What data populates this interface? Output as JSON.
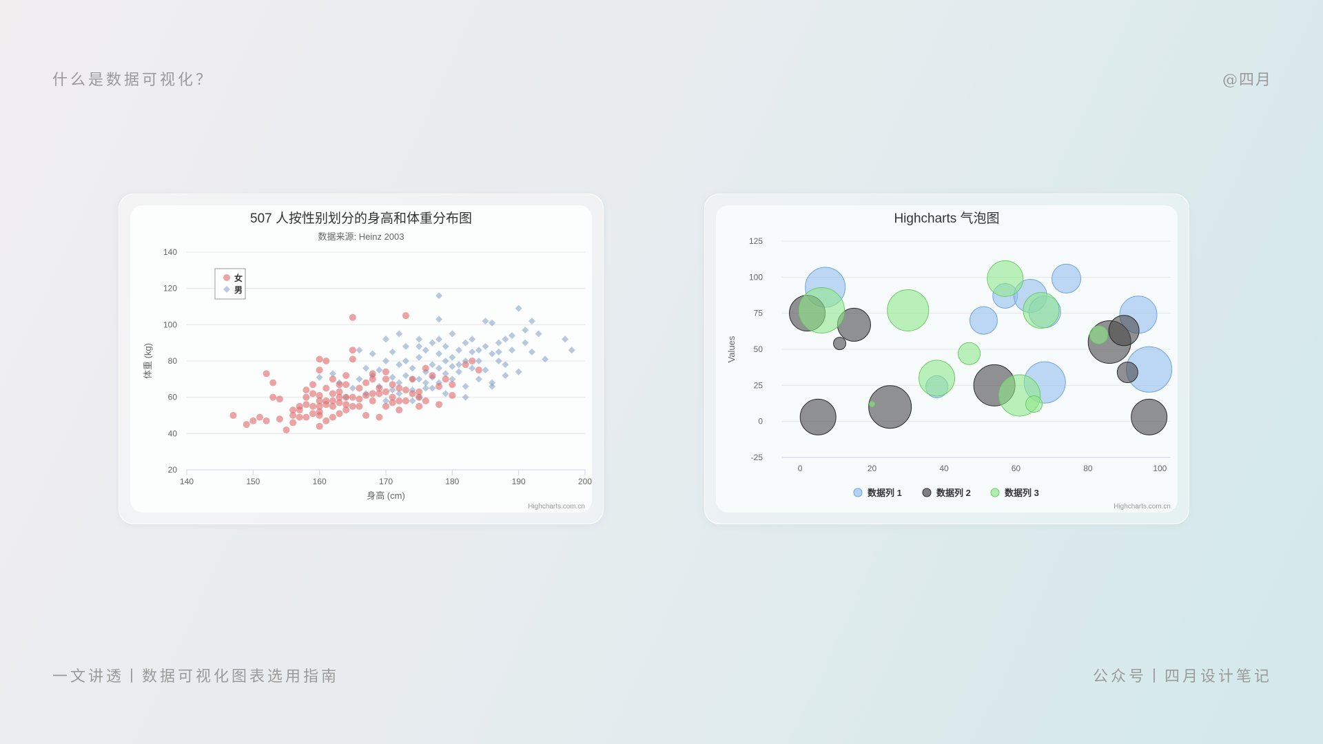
{
  "page": {
    "top_left": "什么是数据可视化？",
    "top_right": "@四月",
    "bottom_left": "一文讲透丨数据可视化图表选用指南",
    "bottom_right": "公众号丨四月设计笔记"
  },
  "chart_data": [
    {
      "type": "scatter",
      "title": "507 人按性别划分的身高和体重分布图",
      "subtitle": "数据来源: Heinz  2003",
      "xlabel": "身高 (cm)",
      "ylabel": "体重 (kg)",
      "xlim": [
        140,
        200
      ],
      "ylim": [
        20,
        140
      ],
      "xticks": [
        140,
        150,
        160,
        170,
        180,
        190,
        200
      ],
      "yticks": [
        20,
        40,
        60,
        80,
        100,
        120,
        140
      ],
      "legend_position": "top-left",
      "credit": "Highcharts.com.cn",
      "grid": true,
      "series": [
        {
          "name": "女",
          "color": "#e06767",
          "marker": "circle",
          "points": [
            [
              147,
              50
            ],
            [
              149,
              45
            ],
            [
              150,
              47
            ],
            [
              151,
              49
            ],
            [
              152,
              73
            ],
            [
              152,
              47
            ],
            [
              153,
              60
            ],
            [
              153,
              68
            ],
            [
              154,
              48
            ],
            [
              155,
              42
            ],
            [
              156,
              50
            ],
            [
              156,
              46
            ],
            [
              157,
              55
            ],
            [
              157,
              53
            ],
            [
              158,
              60
            ],
            [
              158,
              64
            ],
            [
              159,
              67
            ],
            [
              159,
              55
            ],
            [
              160,
              50
            ],
            [
              160,
              52
            ],
            [
              160,
              58
            ],
            [
              160,
              61
            ],
            [
              160,
              75
            ],
            [
              160,
              81
            ],
            [
              161,
              47
            ],
            [
              161,
              80
            ],
            [
              161,
              56
            ],
            [
              162,
              70
            ],
            [
              162,
              55
            ],
            [
              162,
              58
            ],
            [
              163,
              63
            ],
            [
              163,
              51
            ],
            [
              163,
              67
            ],
            [
              164,
              60
            ],
            [
              164,
              72
            ],
            [
              164,
              56
            ],
            [
              165,
              104
            ],
            [
              165,
              86
            ],
            [
              165,
              60
            ],
            [
              165,
              81
            ],
            [
              166,
              65
            ],
            [
              166,
              55
            ],
            [
              167,
              50
            ],
            [
              167,
              68
            ],
            [
              168,
              58
            ],
            [
              168,
              70
            ],
            [
              169,
              49
            ],
            [
              169,
              62
            ],
            [
              170,
              55
            ],
            [
              170,
              63
            ],
            [
              170,
              74
            ],
            [
              171,
              60
            ],
            [
              171,
              67
            ],
            [
              172,
              53
            ],
            [
              172,
              65
            ],
            [
              173,
              105
            ],
            [
              173,
              58
            ],
            [
              174,
              62
            ],
            [
              174,
              70
            ],
            [
              175,
              55
            ],
            [
              175,
              63
            ],
            [
              176,
              58
            ],
            [
              177,
              72
            ],
            [
              178,
              56
            ],
            [
              178,
              66
            ],
            [
              179,
              70
            ],
            [
              180,
              61
            ],
            [
              180,
              67
            ],
            [
              182,
              78
            ],
            [
              183,
              80
            ],
            [
              184,
              75
            ],
            [
              176,
              76
            ],
            [
              168,
              62
            ],
            [
              166,
              59
            ],
            [
              164,
              53
            ],
            [
              162,
              62
            ],
            [
              161,
              58
            ],
            [
              159,
              51
            ],
            [
              158,
              56
            ],
            [
              157,
              49
            ],
            [
              163,
              57
            ],
            [
              165,
              55
            ],
            [
              167,
              61
            ],
            [
              169,
              65
            ],
            [
              171,
              57
            ],
            [
              173,
              64
            ],
            [
              159,
              62
            ],
            [
              160,
              55
            ],
            [
              161,
              65
            ],
            [
              162,
              49
            ],
            [
              163,
              60
            ],
            [
              164,
              67
            ],
            [
              160,
              44
            ],
            [
              158,
              49
            ],
            [
              156,
              53
            ],
            [
              154,
              59
            ],
            [
              168,
              73
            ],
            [
              170,
              70
            ],
            [
              172,
              58
            ],
            [
              175,
              60
            ]
          ]
        },
        {
          "name": "男",
          "color": "#7f9dc6",
          "marker": "diamond",
          "points": [
            [
              160,
              71
            ],
            [
              162,
              73
            ],
            [
              163,
              68
            ],
            [
              164,
              60
            ],
            [
              165,
              65
            ],
            [
              166,
              86
            ],
            [
              166,
              70
            ],
            [
              167,
              76
            ],
            [
              167,
              62
            ],
            [
              168,
              72
            ],
            [
              168,
              84
            ],
            [
              169,
              75
            ],
            [
              169,
              66
            ],
            [
              170,
              58
            ],
            [
              170,
              80
            ],
            [
              170,
              92
            ],
            [
              171,
              71
            ],
            [
              171,
              85
            ],
            [
              171,
              64
            ],
            [
              172,
              78
            ],
            [
              172,
              95
            ],
            [
              172,
              68
            ],
            [
              173,
              72
            ],
            [
              173,
              80
            ],
            [
              173,
              88
            ],
            [
              174,
              76
            ],
            [
              174,
              70
            ],
            [
              174,
              64
            ],
            [
              175,
              82
            ],
            [
              175,
              92
            ],
            [
              175,
              70
            ],
            [
              175,
              60
            ],
            [
              176,
              74
            ],
            [
              176,
              86
            ],
            [
              176,
              68
            ],
            [
              177,
              78
            ],
            [
              177,
              90
            ],
            [
              177,
              71
            ],
            [
              177,
              65
            ],
            [
              178,
              116
            ],
            [
              178,
              103
            ],
            [
              178,
              84
            ],
            [
              178,
              76
            ],
            [
              178,
              68
            ],
            [
              179,
              80
            ],
            [
              179,
              88
            ],
            [
              179,
              73
            ],
            [
              180,
              82
            ],
            [
              180,
              95
            ],
            [
              180,
              77
            ],
            [
              180,
              70
            ],
            [
              181,
              86
            ],
            [
              181,
              74
            ],
            [
              182,
              80
            ],
            [
              182,
              90
            ],
            [
              182,
              66
            ],
            [
              183,
              85
            ],
            [
              183,
              76
            ],
            [
              183,
              92
            ],
            [
              184,
              70
            ],
            [
              184,
              80
            ],
            [
              185,
              88
            ],
            [
              185,
              102
            ],
            [
              185,
              75
            ],
            [
              186,
              84
            ],
            [
              186,
              101
            ],
            [
              186,
              68
            ],
            [
              187,
              80
            ],
            [
              187,
              90
            ],
            [
              188,
              92
            ],
            [
              188,
              78
            ],
            [
              188,
              72
            ],
            [
              189,
              86
            ],
            [
              189,
              94
            ],
            [
              190,
              109
            ],
            [
              190,
              74
            ],
            [
              191,
              90
            ],
            [
              191,
              97
            ],
            [
              192,
              102
            ],
            [
              192,
              85
            ],
            [
              193,
              95
            ],
            [
              194,
              81
            ],
            [
              197,
              92
            ],
            [
              198,
              86
            ],
            [
              186,
              66
            ],
            [
              182,
              60
            ],
            [
              179,
              62
            ],
            [
              176,
              65
            ],
            [
              174,
              58
            ],
            [
              172,
              62
            ],
            [
              181,
              78
            ],
            [
              178,
              92
            ],
            [
              175,
              88
            ],
            [
              184,
              86
            ],
            [
              187,
              85
            ]
          ]
        }
      ]
    },
    {
      "type": "bubble",
      "title": "Highcharts 气泡图",
      "xlabel": "",
      "ylabel": "Values",
      "xlim": [
        -5,
        103
      ],
      "ylim": [
        -25,
        125
      ],
      "xticks": [
        0,
        20,
        40,
        60,
        80,
        100
      ],
      "yticks": [
        -25,
        0,
        25,
        50,
        75,
        100,
        125
      ],
      "legend_position": "bottom-center",
      "credit": "Highcharts.com.cn",
      "grid": true,
      "series": [
        {
          "name": "数据列 1",
          "color": "#95c0ee",
          "stroke": "#6fa3de",
          "points": [
            [
              7,
              93,
              58
            ],
            [
              38,
              24,
              32
            ],
            [
              51,
              70,
              40
            ],
            [
              57,
              87,
              36
            ],
            [
              64,
              87,
              48
            ],
            [
              68,
              76,
              46
            ],
            [
              74,
              99,
              42
            ],
            [
              68,
              27,
              60
            ],
            [
              94,
              74,
              54
            ],
            [
              97,
              36,
              66
            ]
          ]
        },
        {
          "name": "数据列 2",
          "color": "#4a4a4a",
          "stroke": "#2a2a2a",
          "points": [
            [
              2,
              75,
              52
            ],
            [
              5,
              3,
              52
            ],
            [
              11,
              54,
              18
            ],
            [
              15,
              67,
              48
            ],
            [
              25,
              10,
              62
            ],
            [
              54,
              25,
              60
            ],
            [
              86,
              55,
              62
            ],
            [
              90,
              63,
              44
            ],
            [
              91,
              34,
              30
            ],
            [
              97,
              3,
              52
            ]
          ]
        },
        {
          "name": "数据列 3",
          "color": "#90e88a",
          "stroke": "#6ccb66",
          "points": [
            [
              6,
              77,
              66
            ],
            [
              20,
              12,
              8
            ],
            [
              30,
              77,
              60
            ],
            [
              38,
              30,
              52
            ],
            [
              47,
              47,
              32
            ],
            [
              57,
              99,
              52
            ],
            [
              61,
              18,
              60
            ],
            [
              65,
              12,
              24
            ],
            [
              67,
              77,
              52
            ],
            [
              83,
              60,
              26
            ]
          ]
        }
      ]
    }
  ]
}
